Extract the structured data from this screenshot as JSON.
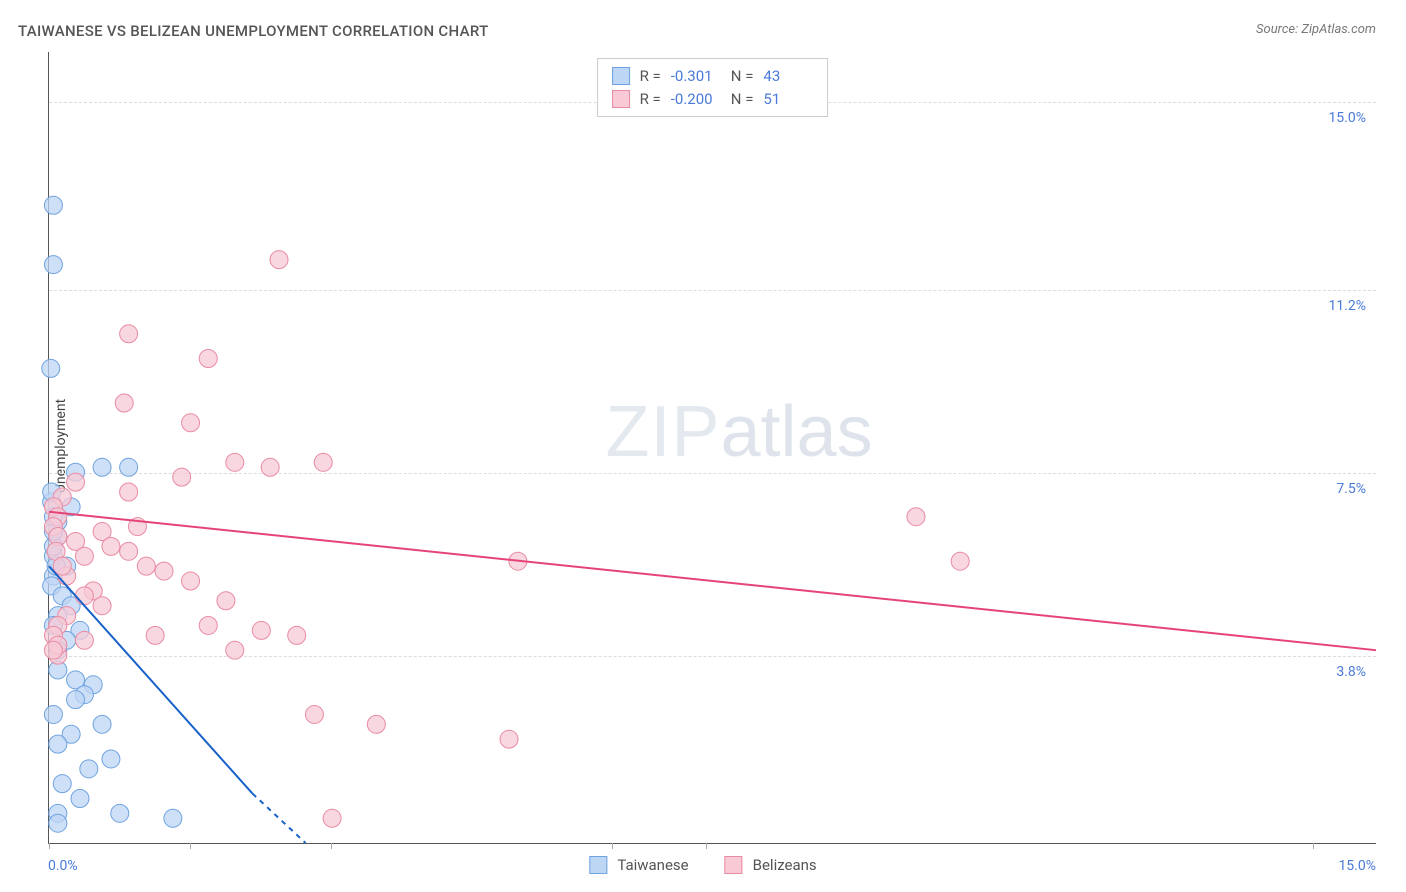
{
  "title": "TAIWANESE VS BELIZEAN UNEMPLOYMENT CORRELATION CHART",
  "source": "Source: ZipAtlas.com",
  "y_axis_label": "Unemployment",
  "x_axis": {
    "min": 0,
    "max": 15,
    "min_label": "0.0%",
    "max_label": "15.0%",
    "tick_positions_pct": [
      0,
      10.6,
      21.2,
      42.4,
      49.5,
      95.2
    ]
  },
  "y_axis": {
    "min": 0,
    "max": 16,
    "ticks": [
      {
        "value": 3.8,
        "label": "3.8%"
      },
      {
        "value": 7.5,
        "label": "7.5%"
      },
      {
        "value": 11.2,
        "label": "11.2%"
      },
      {
        "value": 15.0,
        "label": "15.0%"
      }
    ]
  },
  "watermark": {
    "zip": "ZIP",
    "atlas": "atlas"
  },
  "series": [
    {
      "name": "Taiwanese",
      "color_fill": "#bdd6f4",
      "color_stroke": "#6fa3e0",
      "line_color": "#1861c9",
      "swatch_fill": "#bdd6f4",
      "swatch_border": "#6fa3e0",
      "R": "-0.301",
      "N": "43",
      "trend": {
        "x1": 0.0,
        "y1": 5.6,
        "x2": 2.3,
        "y2": 1.0,
        "dash_x2": 2.9,
        "dash_y2": 0.0
      },
      "points": [
        [
          0.05,
          12.9
        ],
        [
          0.05,
          11.7
        ],
        [
          0.02,
          9.6
        ],
        [
          0.3,
          7.5
        ],
        [
          0.25,
          6.8
        ],
        [
          0.1,
          6.5
        ],
        [
          0.1,
          6.2
        ],
        [
          0.05,
          5.8
        ],
        [
          0.2,
          5.6
        ],
        [
          0.05,
          5.4
        ],
        [
          0.03,
          5.2
        ],
        [
          0.15,
          5.0
        ],
        [
          0.25,
          4.8
        ],
        [
          0.1,
          4.6
        ],
        [
          0.05,
          4.4
        ],
        [
          0.35,
          4.3
        ],
        [
          0.2,
          4.1
        ],
        [
          0.1,
          3.9
        ],
        [
          0.6,
          7.6
        ],
        [
          0.9,
          7.6
        ],
        [
          0.1,
          3.5
        ],
        [
          0.3,
          3.3
        ],
        [
          0.5,
          3.2
        ],
        [
          0.4,
          3.0
        ],
        [
          0.3,
          2.9
        ],
        [
          0.05,
          2.6
        ],
        [
          0.6,
          2.4
        ],
        [
          0.25,
          2.2
        ],
        [
          0.1,
          2.0
        ],
        [
          0.7,
          1.7
        ],
        [
          0.45,
          1.5
        ],
        [
          0.15,
          1.2
        ],
        [
          0.35,
          0.9
        ],
        [
          0.1,
          0.6
        ],
        [
          0.8,
          0.6
        ],
        [
          1.4,
          0.5
        ],
        [
          0.1,
          0.4
        ],
        [
          0.03,
          6.9
        ],
        [
          0.03,
          7.1
        ],
        [
          0.05,
          6.0
        ],
        [
          0.05,
          6.3
        ],
        [
          0.05,
          6.6
        ],
        [
          0.08,
          5.6
        ]
      ]
    },
    {
      "name": "Belizeans",
      "color_fill": "#f7cad5",
      "color_stroke": "#e98ba3",
      "line_color": "#e64379",
      "swatch_fill": "#f7cad5",
      "swatch_border": "#e98ba3",
      "R": "-0.200",
      "N": "51",
      "trend": {
        "x1": 0.0,
        "y1": 6.7,
        "x2": 15.0,
        "y2": 3.9
      },
      "points": [
        [
          2.6,
          11.8
        ],
        [
          0.9,
          10.3
        ],
        [
          1.8,
          9.8
        ],
        [
          0.85,
          8.9
        ],
        [
          1.6,
          8.5
        ],
        [
          3.1,
          7.7
        ],
        [
          2.1,
          7.7
        ],
        [
          2.5,
          7.6
        ],
        [
          1.5,
          7.4
        ],
        [
          0.3,
          7.3
        ],
        [
          0.9,
          7.1
        ],
        [
          0.15,
          7.0
        ],
        [
          0.05,
          6.8
        ],
        [
          0.1,
          6.6
        ],
        [
          1.0,
          6.4
        ],
        [
          0.6,
          6.3
        ],
        [
          0.3,
          6.1
        ],
        [
          0.7,
          6.0
        ],
        [
          0.9,
          5.9
        ],
        [
          0.4,
          5.8
        ],
        [
          5.3,
          5.7
        ],
        [
          1.1,
          5.6
        ],
        [
          1.3,
          5.5
        ],
        [
          0.2,
          5.4
        ],
        [
          1.6,
          5.3
        ],
        [
          0.5,
          5.1
        ],
        [
          9.8,
          6.6
        ],
        [
          10.3,
          5.7
        ],
        [
          2.0,
          4.9
        ],
        [
          1.8,
          4.4
        ],
        [
          2.4,
          4.3
        ],
        [
          2.8,
          4.2
        ],
        [
          1.2,
          4.2
        ],
        [
          0.4,
          4.1
        ],
        [
          2.1,
          3.9
        ],
        [
          0.1,
          3.8
        ],
        [
          3.0,
          2.6
        ],
        [
          3.7,
          2.4
        ],
        [
          5.2,
          2.1
        ],
        [
          3.2,
          0.5
        ],
        [
          0.05,
          6.4
        ],
        [
          0.1,
          6.2
        ],
        [
          0.08,
          5.9
        ],
        [
          0.15,
          5.6
        ],
        [
          0.4,
          5.0
        ],
        [
          0.6,
          4.8
        ],
        [
          0.2,
          4.6
        ],
        [
          0.1,
          4.4
        ],
        [
          0.05,
          4.2
        ],
        [
          0.1,
          4.0
        ],
        [
          0.05,
          3.9
        ]
      ]
    }
  ],
  "legend_bottom": [
    {
      "label": "Taiwanese",
      "fill": "#bdd6f4",
      "border": "#6fa3e0"
    },
    {
      "label": "Belizeans",
      "fill": "#f7cad5",
      "border": "#e98ba3"
    }
  ],
  "marker_radius": 9,
  "marker_opacity": 0.75,
  "line_width": 2
}
